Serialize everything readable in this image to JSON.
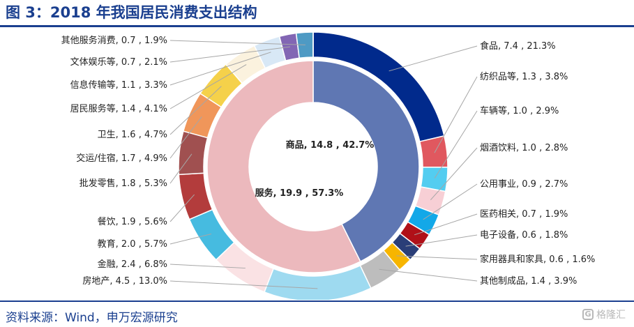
{
  "page": {
    "title": "图 3：2018 年我国居民消费支出结构",
    "source": "资料来源：Wind，申万宏源研究",
    "watermark": "格隆汇",
    "watermark_icon": "G"
  },
  "chart_data": {
    "type": "pie",
    "style": "double donut",
    "title": "图 3：2018 年我国居民消费支出结构",
    "inner_ring": {
      "slices": [
        {
          "name": "商品",
          "value": 14.8,
          "percent": 42.7,
          "label": "商品, 14.8 , 42.7%",
          "color": "#2a4a9a"
        },
        {
          "name": "服务",
          "value": 19.9,
          "percent": 57.3,
          "label": "服务, 19.9 , 57.3%",
          "color": "#e6a2a7"
        }
      ]
    },
    "outer_ring": {
      "slices": [
        {
          "name": "食品",
          "value": 7.4,
          "percent": 21.3,
          "label": "食品, 7.4 , 21.3%",
          "color": "#012a8c",
          "group": "商品"
        },
        {
          "name": "纺织品等",
          "value": 1.3,
          "percent": 3.8,
          "label": "纺织品等, 1.3 , 3.8%",
          "color": "#e0585f",
          "group": "商品"
        },
        {
          "name": "车辆等",
          "value": 1.0,
          "percent": 2.9,
          "label": "车辆等, 1.0 , 2.9%",
          "color": "#53cdf0",
          "group": "商品"
        },
        {
          "name": "烟酒饮料",
          "value": 1.0,
          "percent": 2.8,
          "label": "烟酒饮料, 1.0 , 2.8%",
          "color": "#f7cfd5",
          "group": "商品"
        },
        {
          "name": "公用事业",
          "value": 0.9,
          "percent": 2.7,
          "label": "公用事业, 0.9 , 2.7%",
          "color": "#13a8e8",
          "group": "商品"
        },
        {
          "name": "医药相关",
          "value": 0.7,
          "percent": 1.9,
          "label": "医药相关, 0.7 , 1.9%",
          "color": "#b01018",
          "group": "商品"
        },
        {
          "name": "电子设备",
          "value": 0.6,
          "percent": 1.8,
          "label": "电子设备, 0.6 , 1.8%",
          "color": "#2a3e78",
          "group": "商品"
        },
        {
          "name": "家用器具和家具",
          "value": 0.6,
          "percent": 1.6,
          "label": "家用器具和家具, 0.6 , 1.6%",
          "color": "#f7b500",
          "group": "商品"
        },
        {
          "name": "其他制成品",
          "value": 1.4,
          "percent": 3.9,
          "label": "其他制成品, 1.4 , 3.9%",
          "color": "#bdbdbd",
          "group": "商品"
        },
        {
          "name": "房地产",
          "value": 4.5,
          "percent": 13.0,
          "label": "房地产, 4.5 , 13.0%",
          "color": "#9edaf0",
          "group": "服务"
        },
        {
          "name": "金融",
          "value": 2.4,
          "percent": 6.8,
          "label": "金融, 2.4 , 6.8%",
          "color": "#fae2e4",
          "group": "服务"
        },
        {
          "name": "教育",
          "value": 2.0,
          "percent": 5.7,
          "label": "教育, 2.0 , 5.7%",
          "color": "#46bbe0",
          "group": "服务"
        },
        {
          "name": "餐饮",
          "value": 1.9,
          "percent": 5.6,
          "label": "餐饮, 1.9 , 5.6%",
          "color": "#b33c3c",
          "group": "服务"
        },
        {
          "name": "批发零售",
          "value": 1.8,
          "percent": 5.3,
          "label": "批发零售, 1.8 , 5.3%",
          "color": "#a05050",
          "group": "服务"
        },
        {
          "name": "交运/住宿",
          "value": 1.7,
          "percent": 4.9,
          "label": "交运/住宿, 1.7 , 4.9%",
          "color": "#f0965a",
          "group": "服务"
        },
        {
          "name": "卫生",
          "value": 1.6,
          "percent": 4.7,
          "label": "卫生, 1.6 , 4.7%",
          "color": "#f5d14a",
          "group": "服务"
        },
        {
          "name": "居民服务等",
          "value": 1.4,
          "percent": 4.1,
          "label": "居民服务等, 1.4 , 4.1%",
          "color": "#fbf2de",
          "group": "服务"
        },
        {
          "name": "信息传输等",
          "value": 1.1,
          "percent": 3.3,
          "label": "信息传输等, 1.1 , 3.3%",
          "color": "#d8e8f6",
          "group": "服务"
        },
        {
          "name": "文体娱乐等",
          "value": 0.7,
          "percent": 2.1,
          "label": "文体娱乐等, 0.7 , 2.1%",
          "color": "#8266b4",
          "group": "服务"
        },
        {
          "name": "其他服务消费",
          "value": 0.7,
          "percent": 1.9,
          "label": "其他服务消费, 0.7 , 1.9%",
          "color": "#4e9ac4",
          "group": "服务"
        }
      ],
      "remainder_color": "#e4e4e4"
    },
    "legend": "none (leader-line labels)"
  }
}
